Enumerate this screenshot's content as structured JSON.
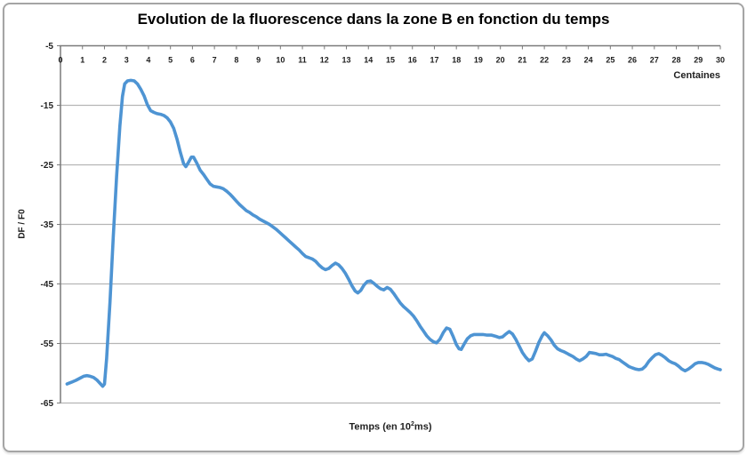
{
  "window": {
    "background_color": "#ffffff",
    "frame_border_color": "#a5a5a5"
  },
  "chart": {
    "title": "Evolution de la fluorescence dans la zone B en fonction du temps",
    "x_axis_unit_label": "Centaines",
    "x_axis_title_prefix": "Temps (en 10",
    "x_axis_title_exponent": "2",
    "x_axis_title_suffix": "ms)",
    "y_axis_title": "DF / F0"
  },
  "chart_data": {
    "type": "line",
    "title": "Evolution de la fluorescence dans la zone B en fonction du temps",
    "xlabel": "Temps (en 10²ms)",
    "xlabel_secondary": "Centaines",
    "ylabel": "DF / F0",
    "xlim": [
      0,
      30
    ],
    "ylim": [
      -65,
      -5
    ],
    "x_ticks": [
      0,
      1,
      2,
      3,
      4,
      5,
      6,
      7,
      8,
      9,
      10,
      11,
      12,
      13,
      14,
      15,
      16,
      17,
      18,
      19,
      20,
      21,
      22,
      23,
      24,
      25,
      26,
      27,
      28,
      29,
      30
    ],
    "y_ticks": [
      -5,
      -15,
      -25,
      -35,
      -45,
      -55,
      -65
    ],
    "grid": "horizontal",
    "legend": "none",
    "colors": {
      "line": "#4e94d3",
      "grid": "#b5b5b5",
      "axis": "#7a7a7a",
      "text": "#1f1f1f"
    },
    "series": [
      {
        "name": "DF / F0",
        "points": [
          [
            0.3,
            -61.8
          ],
          [
            0.5,
            -61.5
          ],
          [
            0.7,
            -61.2
          ],
          [
            0.9,
            -60.8
          ],
          [
            1.05,
            -60.5
          ],
          [
            1.2,
            -60.4
          ],
          [
            1.35,
            -60.5
          ],
          [
            1.5,
            -60.7
          ],
          [
            1.65,
            -61.1
          ],
          [
            1.8,
            -61.7
          ],
          [
            1.92,
            -62.2
          ],
          [
            2.0,
            -61.8
          ],
          [
            2.1,
            -57.5
          ],
          [
            2.25,
            -48.0
          ],
          [
            2.4,
            -37.0
          ],
          [
            2.55,
            -27.0
          ],
          [
            2.7,
            -18.5
          ],
          [
            2.82,
            -13.5
          ],
          [
            2.92,
            -11.4
          ],
          [
            3.05,
            -10.9
          ],
          [
            3.2,
            -10.8
          ],
          [
            3.35,
            -10.9
          ],
          [
            3.5,
            -11.4
          ],
          [
            3.65,
            -12.3
          ],
          [
            3.8,
            -13.4
          ],
          [
            3.95,
            -14.9
          ],
          [
            4.1,
            -15.9
          ],
          [
            4.25,
            -16.2
          ],
          [
            4.4,
            -16.4
          ],
          [
            4.55,
            -16.5
          ],
          [
            4.7,
            -16.7
          ],
          [
            4.85,
            -17.1
          ],
          [
            5.0,
            -17.8
          ],
          [
            5.15,
            -18.9
          ],
          [
            5.3,
            -20.7
          ],
          [
            5.45,
            -22.9
          ],
          [
            5.6,
            -24.8
          ],
          [
            5.7,
            -25.3
          ],
          [
            5.8,
            -24.7
          ],
          [
            5.95,
            -23.7
          ],
          [
            6.05,
            -23.7
          ],
          [
            6.2,
            -24.7
          ],
          [
            6.35,
            -25.9
          ],
          [
            6.5,
            -26.6
          ],
          [
            6.65,
            -27.4
          ],
          [
            6.8,
            -28.2
          ],
          [
            6.95,
            -28.6
          ],
          [
            7.1,
            -28.7
          ],
          [
            7.25,
            -28.8
          ],
          [
            7.4,
            -29.0
          ],
          [
            7.55,
            -29.4
          ],
          [
            7.7,
            -29.9
          ],
          [
            7.85,
            -30.5
          ],
          [
            8.0,
            -31.1
          ],
          [
            8.15,
            -31.7
          ],
          [
            8.3,
            -32.2
          ],
          [
            8.45,
            -32.7
          ],
          [
            8.6,
            -33.0
          ],
          [
            8.75,
            -33.4
          ],
          [
            8.9,
            -33.7
          ],
          [
            9.05,
            -34.1
          ],
          [
            9.2,
            -34.4
          ],
          [
            9.35,
            -34.7
          ],
          [
            9.5,
            -35.0
          ],
          [
            9.65,
            -35.4
          ],
          [
            9.8,
            -35.8
          ],
          [
            9.95,
            -36.3
          ],
          [
            10.1,
            -36.8
          ],
          [
            10.25,
            -37.3
          ],
          [
            10.4,
            -37.8
          ],
          [
            10.55,
            -38.3
          ],
          [
            10.7,
            -38.8
          ],
          [
            10.85,
            -39.3
          ],
          [
            11.0,
            -39.9
          ],
          [
            11.15,
            -40.4
          ],
          [
            11.3,
            -40.6
          ],
          [
            11.45,
            -40.8
          ],
          [
            11.6,
            -41.2
          ],
          [
            11.75,
            -41.8
          ],
          [
            11.9,
            -42.3
          ],
          [
            12.05,
            -42.6
          ],
          [
            12.2,
            -42.4
          ],
          [
            12.35,
            -41.9
          ],
          [
            12.5,
            -41.5
          ],
          [
            12.65,
            -41.8
          ],
          [
            12.8,
            -42.4
          ],
          [
            12.95,
            -43.2
          ],
          [
            13.1,
            -44.2
          ],
          [
            13.25,
            -45.3
          ],
          [
            13.4,
            -46.2
          ],
          [
            13.52,
            -46.5
          ],
          [
            13.65,
            -46.1
          ],
          [
            13.8,
            -45.2
          ],
          [
            13.95,
            -44.6
          ],
          [
            14.1,
            -44.5
          ],
          [
            14.25,
            -44.9
          ],
          [
            14.4,
            -45.4
          ],
          [
            14.55,
            -45.8
          ],
          [
            14.7,
            -46.0
          ],
          [
            14.85,
            -45.6
          ],
          [
            15.0,
            -45.9
          ],
          [
            15.15,
            -46.6
          ],
          [
            15.3,
            -47.4
          ],
          [
            15.45,
            -48.2
          ],
          [
            15.6,
            -48.8
          ],
          [
            15.75,
            -49.3
          ],
          [
            15.9,
            -49.8
          ],
          [
            16.05,
            -50.4
          ],
          [
            16.2,
            -51.2
          ],
          [
            16.35,
            -52.1
          ],
          [
            16.5,
            -52.9
          ],
          [
            16.65,
            -53.7
          ],
          [
            16.8,
            -54.3
          ],
          [
            16.95,
            -54.7
          ],
          [
            17.1,
            -54.9
          ],
          [
            17.25,
            -54.3
          ],
          [
            17.4,
            -53.2
          ],
          [
            17.55,
            -52.4
          ],
          [
            17.7,
            -52.6
          ],
          [
            17.85,
            -53.8
          ],
          [
            18.0,
            -55.2
          ],
          [
            18.12,
            -55.9
          ],
          [
            18.22,
            -56.0
          ],
          [
            18.35,
            -55.1
          ],
          [
            18.5,
            -54.2
          ],
          [
            18.65,
            -53.7
          ],
          [
            18.8,
            -53.5
          ],
          [
            19.0,
            -53.5
          ],
          [
            19.2,
            -53.5
          ],
          [
            19.4,
            -53.6
          ],
          [
            19.6,
            -53.6
          ],
          [
            19.8,
            -53.8
          ],
          [
            19.95,
            -54.0
          ],
          [
            20.1,
            -53.9
          ],
          [
            20.25,
            -53.4
          ],
          [
            20.4,
            -53.0
          ],
          [
            20.55,
            -53.4
          ],
          [
            20.7,
            -54.3
          ],
          [
            20.85,
            -55.4
          ],
          [
            21.0,
            -56.5
          ],
          [
            21.15,
            -57.3
          ],
          [
            21.3,
            -57.9
          ],
          [
            21.45,
            -57.6
          ],
          [
            21.6,
            -56.3
          ],
          [
            21.75,
            -54.8
          ],
          [
            21.9,
            -53.7
          ],
          [
            22.0,
            -53.2
          ],
          [
            22.15,
            -53.7
          ],
          [
            22.3,
            -54.4
          ],
          [
            22.45,
            -55.3
          ],
          [
            22.6,
            -55.9
          ],
          [
            22.75,
            -56.2
          ],
          [
            22.9,
            -56.4
          ],
          [
            23.1,
            -56.8
          ],
          [
            23.3,
            -57.2
          ],
          [
            23.45,
            -57.6
          ],
          [
            23.6,
            -57.9
          ],
          [
            23.75,
            -57.6
          ],
          [
            23.9,
            -57.2
          ],
          [
            24.05,
            -56.5
          ],
          [
            24.2,
            -56.6
          ],
          [
            24.35,
            -56.7
          ],
          [
            24.5,
            -56.9
          ],
          [
            24.65,
            -56.9
          ],
          [
            24.8,
            -56.8
          ],
          [
            24.95,
            -57.0
          ],
          [
            25.1,
            -57.2
          ],
          [
            25.25,
            -57.5
          ],
          [
            25.4,
            -57.7
          ],
          [
            25.55,
            -58.1
          ],
          [
            25.7,
            -58.5
          ],
          [
            25.85,
            -58.9
          ],
          [
            26.0,
            -59.1
          ],
          [
            26.15,
            -59.3
          ],
          [
            26.3,
            -59.4
          ],
          [
            26.45,
            -59.3
          ],
          [
            26.6,
            -58.8
          ],
          [
            26.75,
            -58.0
          ],
          [
            26.9,
            -57.4
          ],
          [
            27.05,
            -56.9
          ],
          [
            27.2,
            -56.7
          ],
          [
            27.35,
            -57.0
          ],
          [
            27.5,
            -57.4
          ],
          [
            27.65,
            -57.9
          ],
          [
            27.8,
            -58.2
          ],
          [
            27.95,
            -58.4
          ],
          [
            28.1,
            -58.8
          ],
          [
            28.25,
            -59.3
          ],
          [
            28.4,
            -59.6
          ],
          [
            28.55,
            -59.3
          ],
          [
            28.7,
            -58.9
          ],
          [
            28.85,
            -58.4
          ],
          [
            29.0,
            -58.2
          ],
          [
            29.15,
            -58.2
          ],
          [
            29.3,
            -58.3
          ],
          [
            29.45,
            -58.5
          ],
          [
            29.6,
            -58.8
          ],
          [
            29.75,
            -59.1
          ],
          [
            29.9,
            -59.3
          ],
          [
            30.0,
            -59.4
          ]
        ]
      }
    ]
  }
}
